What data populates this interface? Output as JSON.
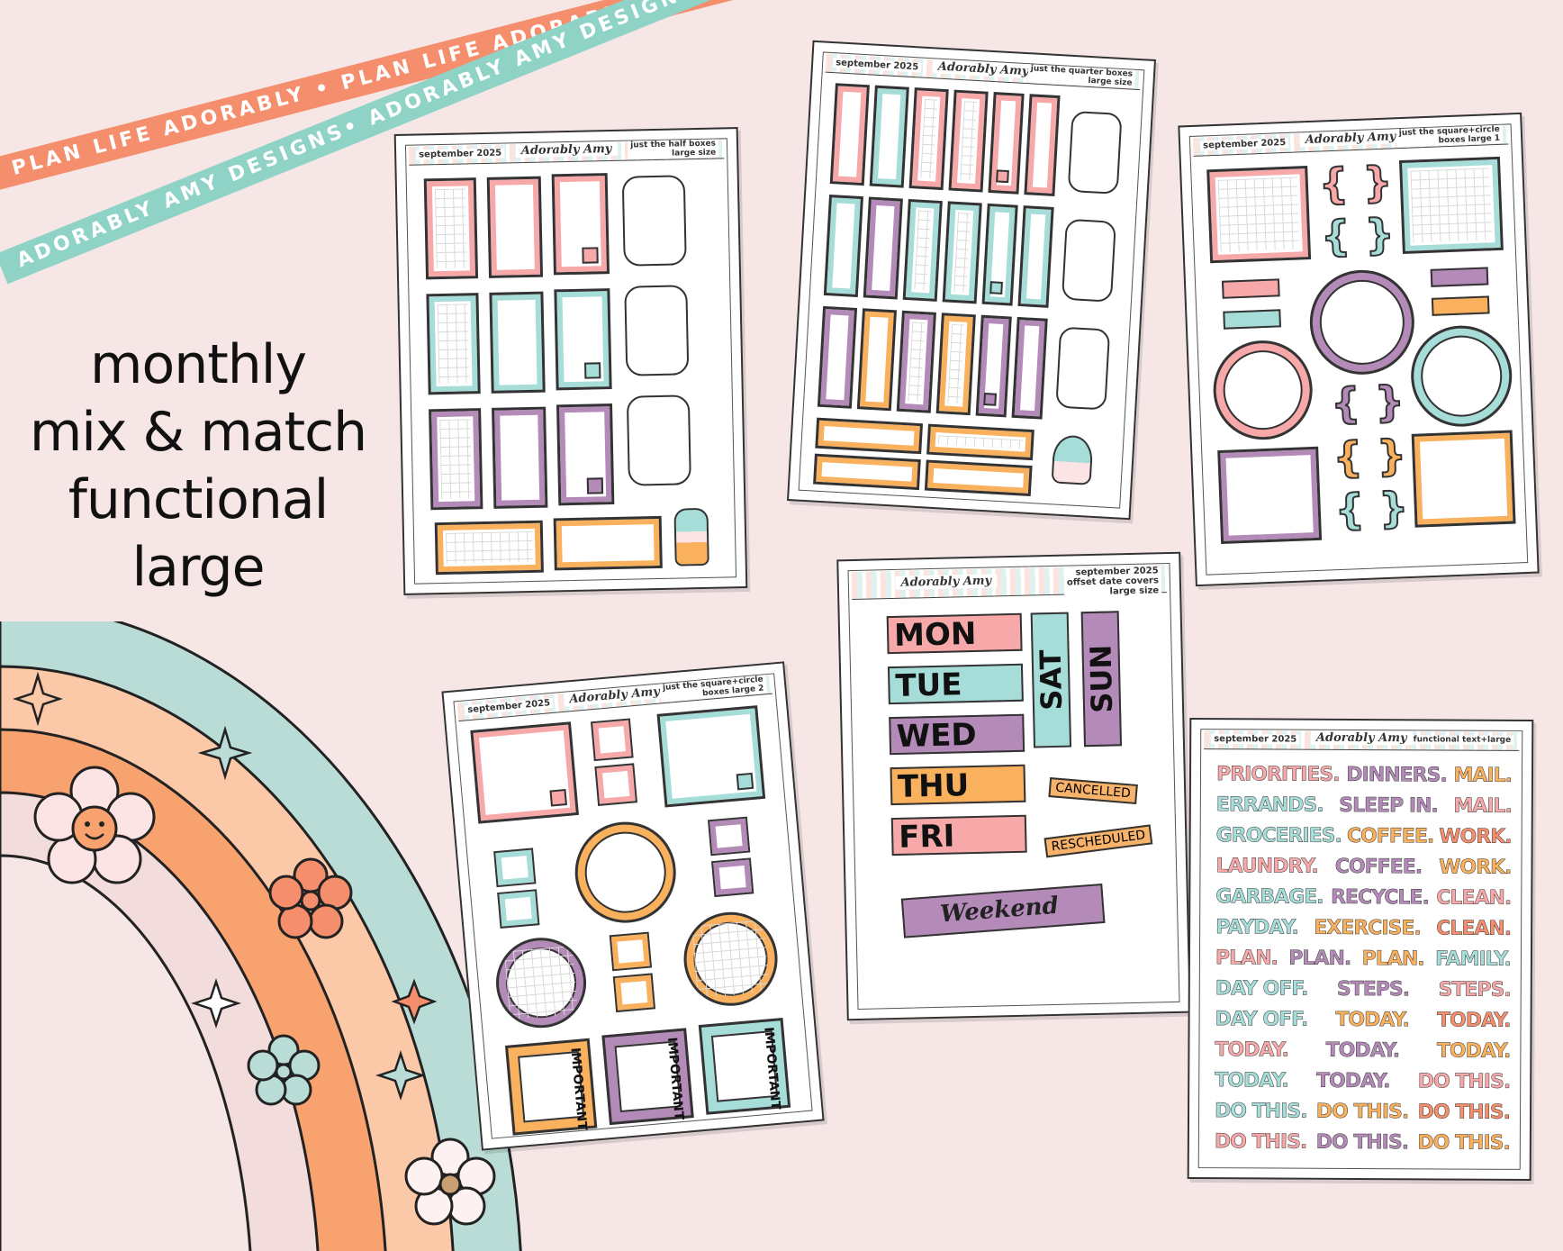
{
  "ribbons": {
    "coral_text": "PLAN LIFE ADORABLY • PLAN LIFE ADORABLY • PLAN LIFE ADORABLY •",
    "mint_text": "ADORABLY AMY DESIGNS• ADORABLY AMY DESIGNS• ADORABLY AMY DESIGNS•",
    "coral_color": "#f58e6c",
    "mint_color": "#8fd3c7"
  },
  "headline": [
    "monthly",
    "mix & match",
    "functional",
    "large"
  ],
  "brand": "Adorably Amy",
  "sheets": {
    "half_boxes": {
      "month": "september 2025",
      "subtitle_1": "just the half boxes",
      "subtitle_2": "large size"
    },
    "quarter_boxes": {
      "month": "september 2025",
      "subtitle_1": "just the quarter boxes",
      "subtitle_2": "large size"
    },
    "square_circle_1": {
      "month": "september 2025",
      "subtitle_1": "just the square+circle",
      "subtitle_2": "boxes large 1"
    },
    "square_circle_2": {
      "month": "september 2025",
      "subtitle_1": "just the square+circle",
      "subtitle_2": "boxes large 2",
      "important_label": "IMPORTANT"
    },
    "date_covers": {
      "title_1": "september 2025",
      "title_2": "offset date covers",
      "title_3": "large size",
      "days": [
        "MON",
        "TUE",
        "WED",
        "THU",
        "FRI"
      ],
      "weekend_days": [
        "SAT",
        "SUN"
      ],
      "tags": [
        "CANCELLED",
        "RESCHEDULED"
      ],
      "banner": "Weekend"
    },
    "functional_text": {
      "month": "september 2025",
      "subtitle": "functional text+large",
      "rows": [
        [
          "PRIORITIES.",
          "DINNERS.",
          "MAIL."
        ],
        [
          "ERRANDS.",
          "SLEEP IN.",
          "MAIL."
        ],
        [
          "GROCERIES.",
          "COFFEE.",
          "WORK."
        ],
        [
          "LAUNDRY.",
          "COFFEE.",
          "WORK."
        ],
        [
          "GARBAGE.",
          "RECYCLE.",
          "CLEAN."
        ],
        [
          "PAYDAY.",
          "EXERCISE.",
          "CLEAN."
        ],
        [
          "PLAN.",
          "PLAN.",
          "PLAN.",
          "FAMILY."
        ],
        [
          "DAY OFF.",
          "STEPS.",
          "STEPS."
        ],
        [
          "DAY OFF.",
          "TODAY.",
          "TODAY."
        ],
        [
          "TODAY.",
          "TODAY.",
          "TODAY."
        ],
        [
          "TODAY.",
          "TODAY.",
          "DO THIS."
        ],
        [
          "DO THIS.",
          "DO THIS.",
          "DO THIS."
        ],
        [
          "DO THIS.",
          "DO THIS.",
          "DO THIS."
        ]
      ]
    }
  },
  "palette": {
    "pink": "#f7a9aa",
    "mint": "#a6ddd8",
    "purple": "#b48ab8",
    "orange": "#f9b15e",
    "coral": "#f58e6c",
    "peach": "#fbc8a8",
    "blush": "#f2d4d4"
  }
}
